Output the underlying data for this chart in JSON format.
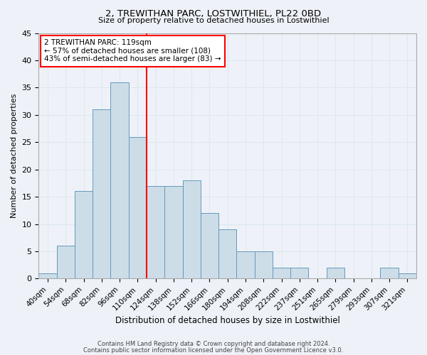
{
  "title1": "2, TREWITHAN PARC, LOSTWITHIEL, PL22 0BD",
  "title2": "Size of property relative to detached houses in Lostwithiel",
  "xlabel": "Distribution of detached houses by size in Lostwithiel",
  "ylabel": "Number of detached properties",
  "bin_labels": [
    "40sqm",
    "54sqm",
    "68sqm",
    "82sqm",
    "96sqm",
    "110sqm",
    "124sqm",
    "138sqm",
    "152sqm",
    "166sqm",
    "180sqm",
    "194sqm",
    "208sqm",
    "222sqm",
    "237sqm",
    "251sqm",
    "265sqm",
    "279sqm",
    "293sqm",
    "307sqm",
    "321sqm"
  ],
  "bar_heights": [
    1,
    6,
    16,
    31,
    36,
    26,
    17,
    17,
    18,
    12,
    9,
    5,
    5,
    2,
    2,
    0,
    2,
    0,
    0,
    2,
    1
  ],
  "bar_color": "#ccdde8",
  "bar_edge_color": "#6699bb",
  "vline_x": 6.0,
  "vline_color": "red",
  "annotation_text": "2 TREWITHAN PARC: 119sqm\n← 57% of detached houses are smaller (108)\n43% of semi-detached houses are larger (83) →",
  "annotation_box_color": "white",
  "annotation_box_edge_color": "red",
  "ylim": [
    0,
    45
  ],
  "yticks": [
    0,
    5,
    10,
    15,
    20,
    25,
    30,
    35,
    40,
    45
  ],
  "grid_color": "#dde8f0",
  "background_color": "#eef2f8",
  "footnote1": "Contains HM Land Registry data © Crown copyright and database right 2024.",
  "footnote2": "Contains public sector information licensed under the Open Government Licence v3.0."
}
